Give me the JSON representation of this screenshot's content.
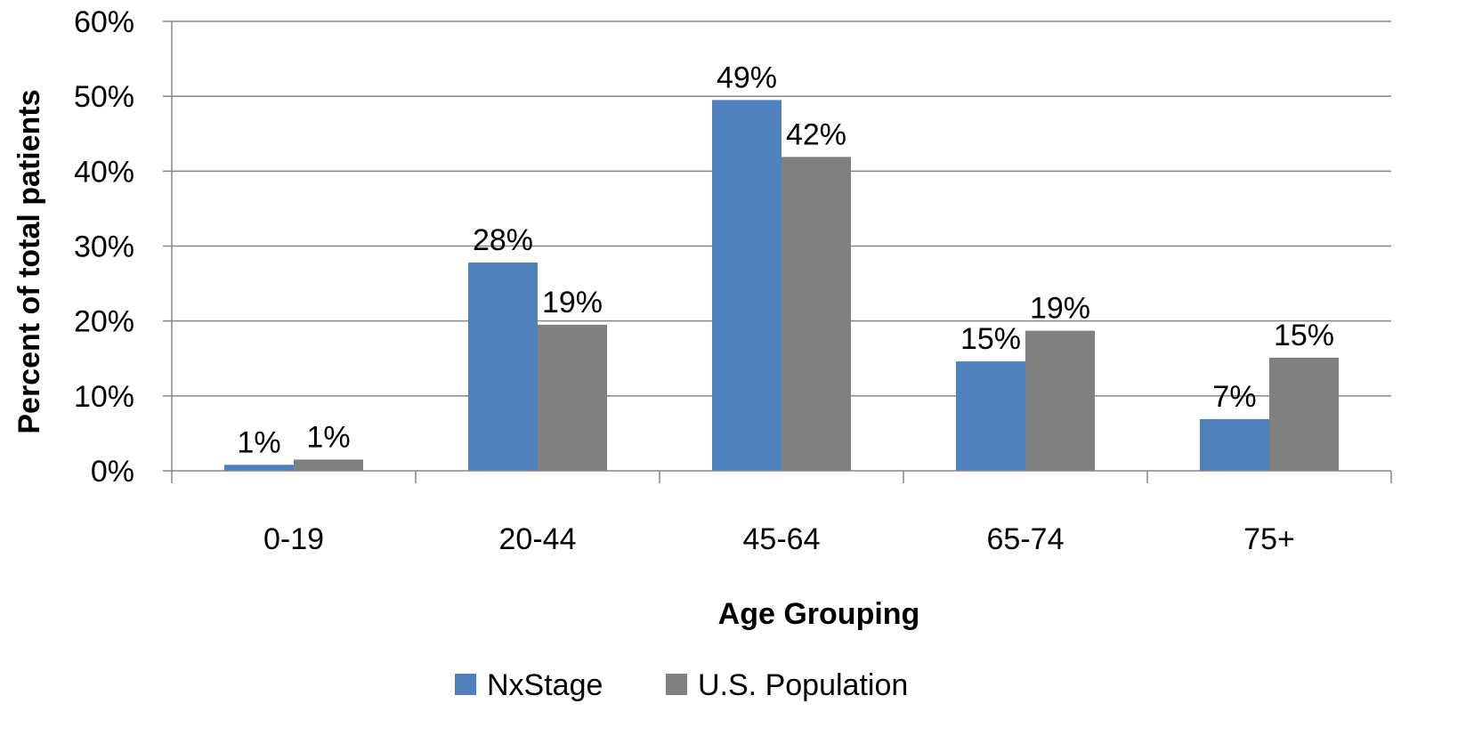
{
  "chart_data": {
    "type": "bar",
    "title": "",
    "xlabel": "Age Grouping",
    "ylabel": "Percent of total patients",
    "categories": [
      "0-19",
      "20-44",
      "45-64",
      "65-74",
      "75+"
    ],
    "series": [
      {
        "name": "NxStage",
        "values": [
          0.8,
          27.8,
          49.5,
          14.6,
          6.9
        ],
        "labels": [
          "1%",
          "28%",
          "49%",
          "15%",
          "7%"
        ],
        "color": "#4F81BD"
      },
      {
        "name": "U.S. Population",
        "values": [
          1.5,
          19.5,
          41.9,
          18.7,
          15.1
        ],
        "labels": [
          "1%",
          "19%",
          "42%",
          "19%",
          "15%"
        ],
        "color": "#808080"
      }
    ],
    "ylim": [
      0,
      60
    ],
    "yticks": [
      0,
      10,
      20,
      30,
      40,
      50,
      60
    ],
    "ytick_labels": [
      "0%",
      "10%",
      "20%",
      "30%",
      "40%",
      "50%",
      "60%"
    ],
    "grid": true,
    "legend_position": "bottom"
  }
}
